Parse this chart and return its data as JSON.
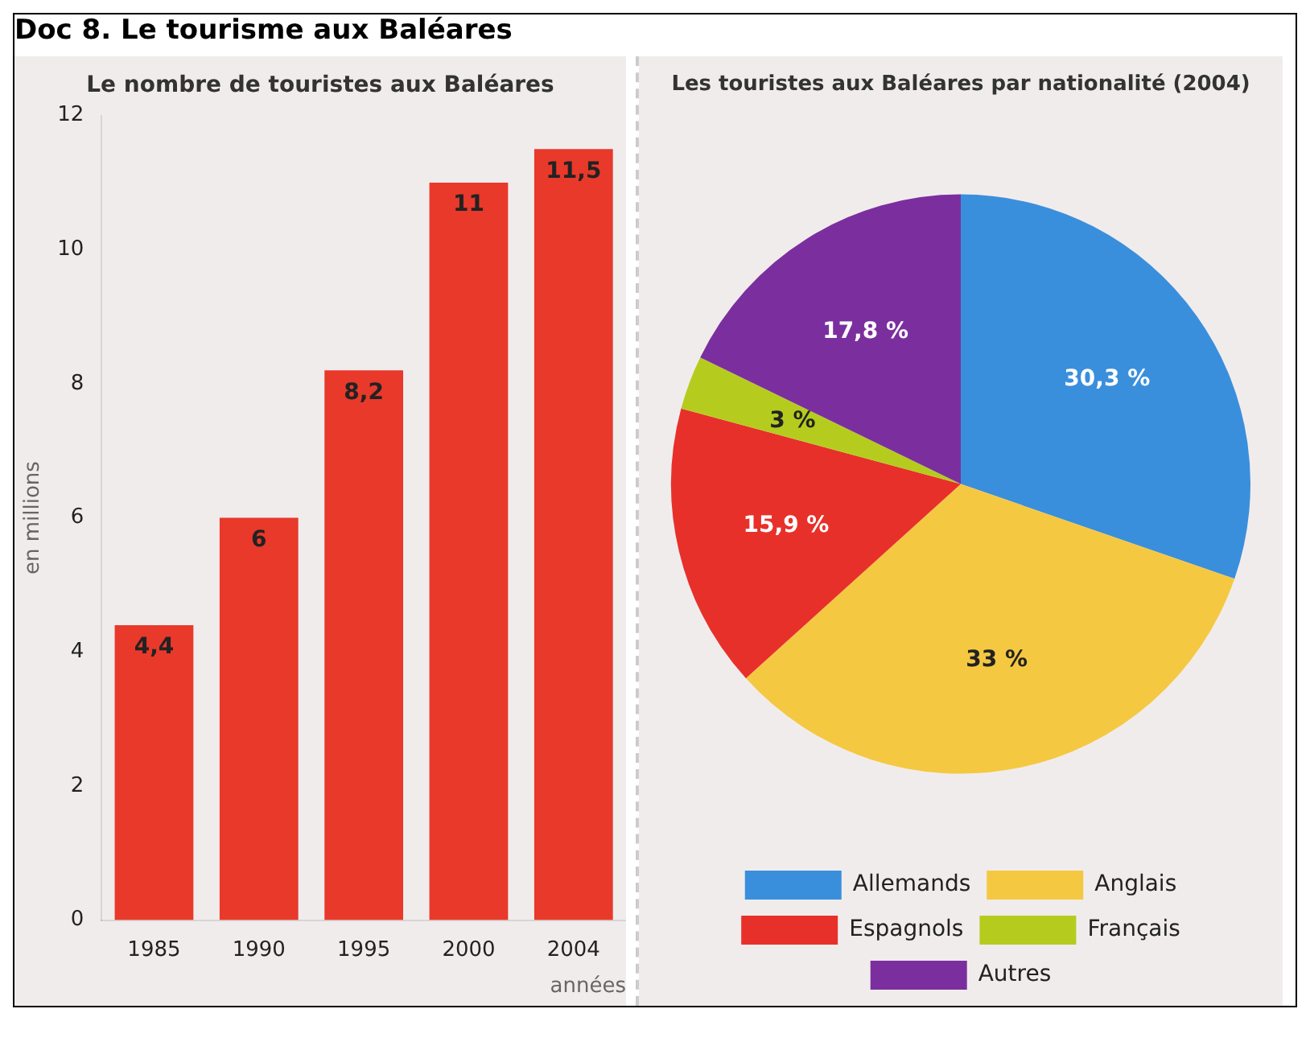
{
  "chart_data": [
    {
      "type": "bar",
      "title": "Le nombre de touristes aux Baléares",
      "annotations": [
        "Doc 8. Le tourisme aux Baléares"
      ],
      "ylabel": "en millions",
      "xlabel": "années",
      "categories": [
        "1985",
        "1990",
        "1995",
        "2000",
        "2004"
      ],
      "values": [
        4.4,
        6,
        8.2,
        11,
        11.5
      ],
      "value_labels": [
        "4,4",
        "6",
        "8,2",
        "11",
        "11,5"
      ],
      "color": "#e8392b",
      "ylim": [
        0,
        12
      ],
      "yticks": [
        0,
        2,
        4,
        6,
        8,
        10,
        12
      ]
    },
    {
      "type": "pie",
      "title": "Les touristes aux Baléares par nationalité (2004)",
      "categories": [
        "Allemands",
        "Anglais",
        "Espagnols",
        "Français",
        "Autres"
      ],
      "values": [
        30.3,
        33,
        15.9,
        3,
        17.8
      ],
      "value_labels": [
        "30,3 %",
        "33 %",
        "15,9 %",
        "3 %",
        "17,8 %"
      ],
      "colors": [
        "#3a8fdc",
        "#f5c842",
        "#e8302a",
        "#b5cc1e",
        "#7b2f9e"
      ],
      "legend": "bottom"
    }
  ]
}
